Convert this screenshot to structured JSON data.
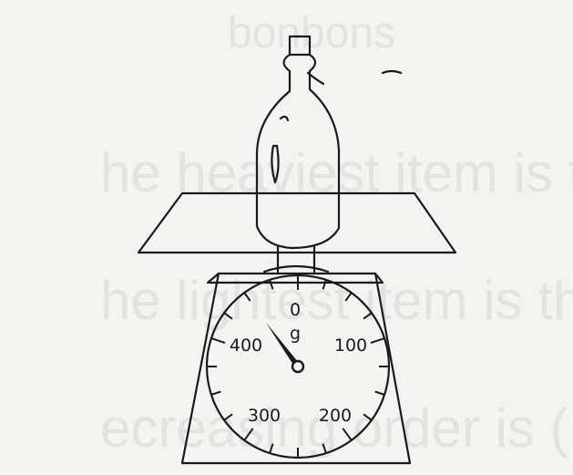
{
  "scale": {
    "unit": "g",
    "zero_label": "0",
    "dial_labels": [
      "100",
      "200",
      "300",
      "400"
    ],
    "max_grams": 500,
    "needle_reading_grams": 450
  },
  "background_text": [
    "bonbons",
    "he heaviest item is th",
    "he lightest item is th",
    "ecreasing order is ("
  ]
}
